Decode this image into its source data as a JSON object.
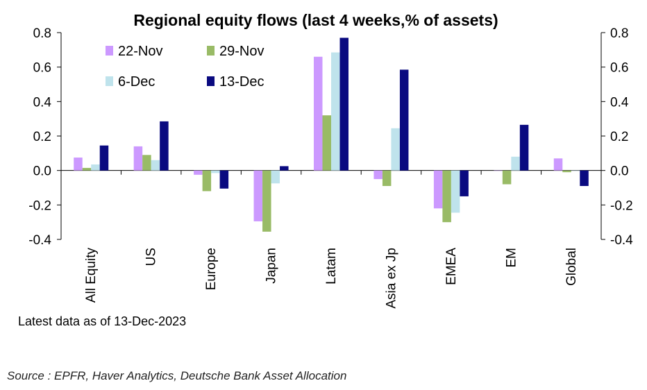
{
  "chart_data": {
    "type": "bar",
    "title": "Regional equity flows (last 4 weeks,% of assets)",
    "categories": [
      "All Equity",
      "US",
      "Europe",
      "Japan",
      "Latam",
      "Asia ex Jp",
      "EMEA",
      "EM",
      "Global"
    ],
    "series": [
      {
        "name": "22-Nov",
        "color": "#cc99ff",
        "values": [
          0.075,
          0.14,
          -0.025,
          -0.295,
          0.66,
          -0.05,
          -0.22,
          0.0,
          0.07
        ]
      },
      {
        "name": "29-Nov",
        "color": "#99bb66",
        "values": [
          0.015,
          0.09,
          -0.12,
          -0.355,
          0.32,
          -0.09,
          -0.3,
          -0.08,
          -0.01
        ]
      },
      {
        "name": "6-Dec",
        "color": "#bfe3ec",
        "values": [
          0.035,
          0.06,
          -0.015,
          -0.075,
          0.685,
          0.245,
          -0.245,
          0.08,
          0.0
        ]
      },
      {
        "name": "13-Dec",
        "color": "#0a0a80",
        "values": [
          0.145,
          0.285,
          -0.105,
          0.025,
          0.77,
          0.585,
          -0.15,
          0.265,
          -0.09
        ]
      }
    ],
    "ylim": [
      -0.4,
      0.8
    ],
    "yticks": [
      "0.8",
      "0.6",
      "0.4",
      "0.2",
      "0.0",
      "-0.2",
      "-0.4"
    ],
    "ytick_values": [
      0.8,
      0.6,
      0.4,
      0.2,
      0.0,
      -0.2,
      -0.4
    ],
    "legend_position": "top-left",
    "xlabel": "",
    "ylabel": ""
  },
  "note": "Latest data as of 13-Dec-2023",
  "source": "Source : EPFR, Haver Analytics, Deutsche Bank Asset Allocation"
}
